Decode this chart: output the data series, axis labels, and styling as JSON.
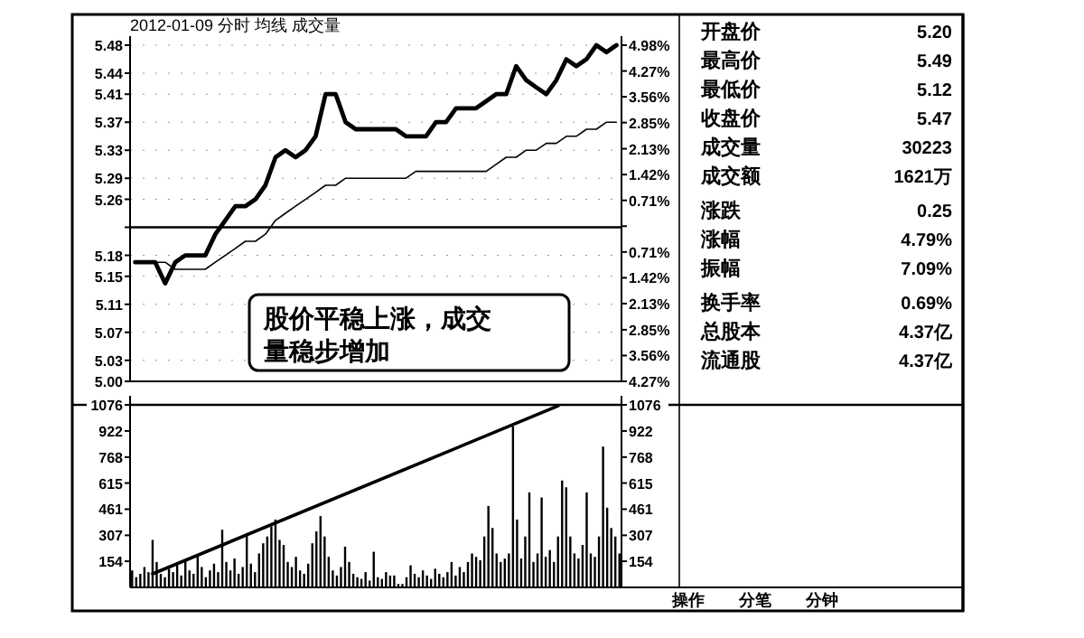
{
  "chart_data": [
    {
      "type": "line",
      "title": "2012-01-09 分时 均线 成交量",
      "categories": [
        null,
        null,
        null,
        null,
        null,
        null,
        null,
        null,
        null,
        null,
        null,
        null,
        null,
        null,
        null,
        null,
        null,
        null,
        null,
        null,
        null,
        null,
        null,
        null,
        null,
        null,
        null,
        null,
        null,
        null,
        null,
        null,
        null,
        null,
        null,
        null,
        null,
        null,
        null,
        null,
        null,
        null,
        null,
        null,
        null,
        null,
        null,
        null,
        null
      ],
      "ylim": [
        5.0,
        5.48
      ],
      "yticks": [
        5.48,
        5.44,
        5.41,
        5.37,
        5.33,
        5.29,
        5.26,
        {
          "value": 5.22,
          "label": null
        },
        5.18,
        5.15,
        5.11,
        5.07,
        5.03,
        {
          "value": 5.0,
          "label": "5.00"
        }
      ],
      "y2lim": [
        -4.27,
        4.98
      ],
      "y2ticks": [
        {
          "value": 4.98,
          "label": "4.98%"
        },
        {
          "value": 4.27,
          "label": "4.27%"
        },
        {
          "value": 3.56,
          "label": "3.56%"
        },
        {
          "value": 2.85,
          "label": "2.85%"
        },
        {
          "value": 2.13,
          "label": "2.13%"
        },
        {
          "value": 1.42,
          "label": "1.42%"
        },
        {
          "value": 0.71,
          "label": "0.71%"
        },
        {
          "value": 0,
          "label": null
        },
        {
          "value": -0.71,
          "label": "0.71%"
        },
        {
          "value": -1.42,
          "label": "1.42%"
        },
        {
          "value": -2.13,
          "label": "2.13%"
        },
        {
          "value": -2.85,
          "label": "2.85%"
        },
        {
          "value": -3.56,
          "label": "3.56%"
        },
        {
          "value": -4.27,
          "label": "4.27%"
        }
      ],
      "tick_labels": "y",
      "grid": "y",
      "series": [
        {
          "color": "#000000",
          "values": [
            5.17,
            5.17,
            5.17,
            5.14,
            5.17,
            5.18,
            5.18,
            5.18,
            5.21,
            5.23,
            5.25,
            5.25,
            5.26,
            5.28,
            5.32,
            5.33,
            5.32,
            5.33,
            5.35,
            5.41,
            5.41,
            5.37,
            5.36,
            5.36,
            5.36,
            5.36,
            5.36,
            5.35,
            5.35,
            5.35,
            5.37,
            5.37,
            5.39,
            5.39,
            5.39,
            5.4,
            5.41,
            5.41,
            5.45,
            5.43,
            5.42,
            5.41,
            5.43,
            5.46,
            5.45,
            5.46,
            5.48,
            5.47,
            5.48
          ]
        },
        {
          "color": "#000000",
          "values": [
            5.17,
            5.17,
            5.17,
            5.17,
            5.16,
            5.16,
            5.16,
            5.16,
            5.17,
            5.18,
            5.19,
            5.2,
            5.2,
            5.21,
            5.23,
            5.24,
            5.25,
            5.26,
            5.27,
            5.28,
            5.28,
            5.29,
            5.29,
            5.29,
            5.29,
            5.29,
            5.29,
            5.29,
            5.3,
            5.3,
            5.3,
            5.3,
            5.3,
            5.3,
            5.3,
            5.3,
            5.31,
            5.32,
            5.32,
            5.33,
            5.33,
            5.34,
            5.34,
            5.35,
            5.35,
            5.36,
            5.36,
            5.37,
            5.37
          ]
        }
      ],
      "ref_lines": [
        {
          "axis": "y",
          "value": 5.22
        }
      ],
      "annotations": [
        "股价平稳上涨，成交量稳步增加"
      ]
    },
    {
      "type": "bar",
      "categories": [
        null,
        null,
        null,
        null,
        null,
        null,
        null,
        null,
        null,
        null,
        null,
        null,
        null,
        null,
        null,
        null,
        null,
        null,
        null,
        null,
        null,
        null,
        null,
        null,
        null,
        null,
        null,
        null,
        null,
        null,
        null,
        null,
        null,
        null,
        null,
        null,
        null,
        null,
        null,
        null,
        null,
        null,
        null,
        null,
        null,
        null,
        null,
        null,
        null,
        null,
        null,
        null,
        null,
        null,
        null,
        null,
        null,
        null,
        null,
        null,
        null,
        null,
        null,
        null,
        null,
        null,
        null,
        null,
        null,
        null,
        null,
        null,
        null,
        null,
        null,
        null,
        null,
        null,
        null,
        null,
        null,
        null,
        null,
        null,
        null,
        null,
        null,
        null,
        null,
        null,
        null,
        null,
        null,
        null,
        null,
        null,
        null,
        null,
        null,
        null,
        null,
        null,
        null,
        null,
        null,
        null,
        null,
        null,
        null,
        null,
        null,
        null,
        null,
        null,
        null,
        null,
        null,
        null,
        null,
        null
      ],
      "ylim": [
        0,
        1076
      ],
      "yticks": [
        154,
        307,
        461,
        615,
        768,
        922,
        1076
      ],
      "y2lim": [
        0,
        1076
      ],
      "y2ticks": [
        154,
        307,
        461,
        615,
        768,
        922,
        1076
      ],
      "tick_labels": "y",
      "series": [
        {
          "color": "#000000",
          "values": [
            100,
            60,
            80,
            120,
            90,
            280,
            150,
            80,
            60,
            110,
            90,
            130,
            70,
            160,
            100,
            80,
            190,
            120,
            60,
            100,
            140,
            90,
            340,
            150,
            100,
            170,
            80,
            120,
            320,
            140,
            90,
            200,
            260,
            300,
            360,
            400,
            280,
            250,
            150,
            120,
            180,
            100,
            80,
            140,
            260,
            330,
            420,
            300,
            180,
            100,
            70,
            120,
            240,
            150,
            80,
            60,
            50,
            90,
            40,
            210,
            60,
            50,
            90,
            70,
            70,
            20,
            20,
            60,
            130,
            80,
            60,
            100,
            70,
            50,
            110,
            80,
            60,
            90,
            150,
            70,
            120,
            90,
            150,
            200,
            180,
            160,
            300,
            480,
            350,
            200,
            150,
            170,
            200,
            950,
            400,
            170,
            300,
            560,
            150,
            200,
            530,
            180,
            220,
            150,
            300,
            630,
            590,
            300,
            200,
            170,
            250,
            560,
            200,
            180,
            300,
            830,
            470,
            350,
            300,
            200
          ]
        },
        {
          "type": "line",
          "color": "#000000",
          "values": [
            null,
            null,
            null,
            null,
            null,
            80,
            null,
            null,
            null,
            null,
            null,
            null,
            null,
            null,
            null,
            null,
            null,
            null,
            null,
            null,
            null,
            null,
            null,
            null,
            null,
            null,
            null,
            null,
            null,
            null,
            null,
            null,
            null,
            null,
            null,
            null,
            null,
            null,
            null,
            null,
            null,
            null,
            null,
            null,
            null,
            null,
            null,
            null,
            null,
            null,
            null,
            null,
            null,
            null,
            null,
            null,
            null,
            null,
            null,
            null,
            null,
            null,
            null,
            null,
            null,
            null,
            null,
            null,
            null,
            null,
            null,
            null,
            null,
            null,
            null,
            null,
            null,
            null,
            null,
            null,
            null,
            null,
            null,
            null,
            null,
            null,
            null,
            null,
            null,
            null,
            null,
            null,
            null,
            null,
            null,
            null,
            null,
            null,
            null,
            null,
            null,
            null,
            null,
            null,
            1070,
            null,
            null,
            null,
            null,
            null,
            null,
            null,
            null,
            null,
            null,
            null,
            null,
            null,
            null,
            null
          ]
        }
      ]
    },
    {
      "type": "other",
      "categories": [
        "开盘价",
        "最高价",
        "最低价",
        "收盘价",
        "成交量",
        "成交额",
        "涨跌",
        "涨幅",
        "振幅",
        "换手率",
        "总股本",
        "流通股"
      ],
      "value_labels": [
        "5.20",
        "5.49",
        "5.12",
        "5.47",
        "30223",
        "1621万",
        "0.25",
        "4.79%",
        "7.09%",
        "0.69%",
        "4.37亿",
        "4.37亿"
      ],
      "annotations": [
        "操作",
        "分笔",
        "分钟"
      ]
    }
  ]
}
